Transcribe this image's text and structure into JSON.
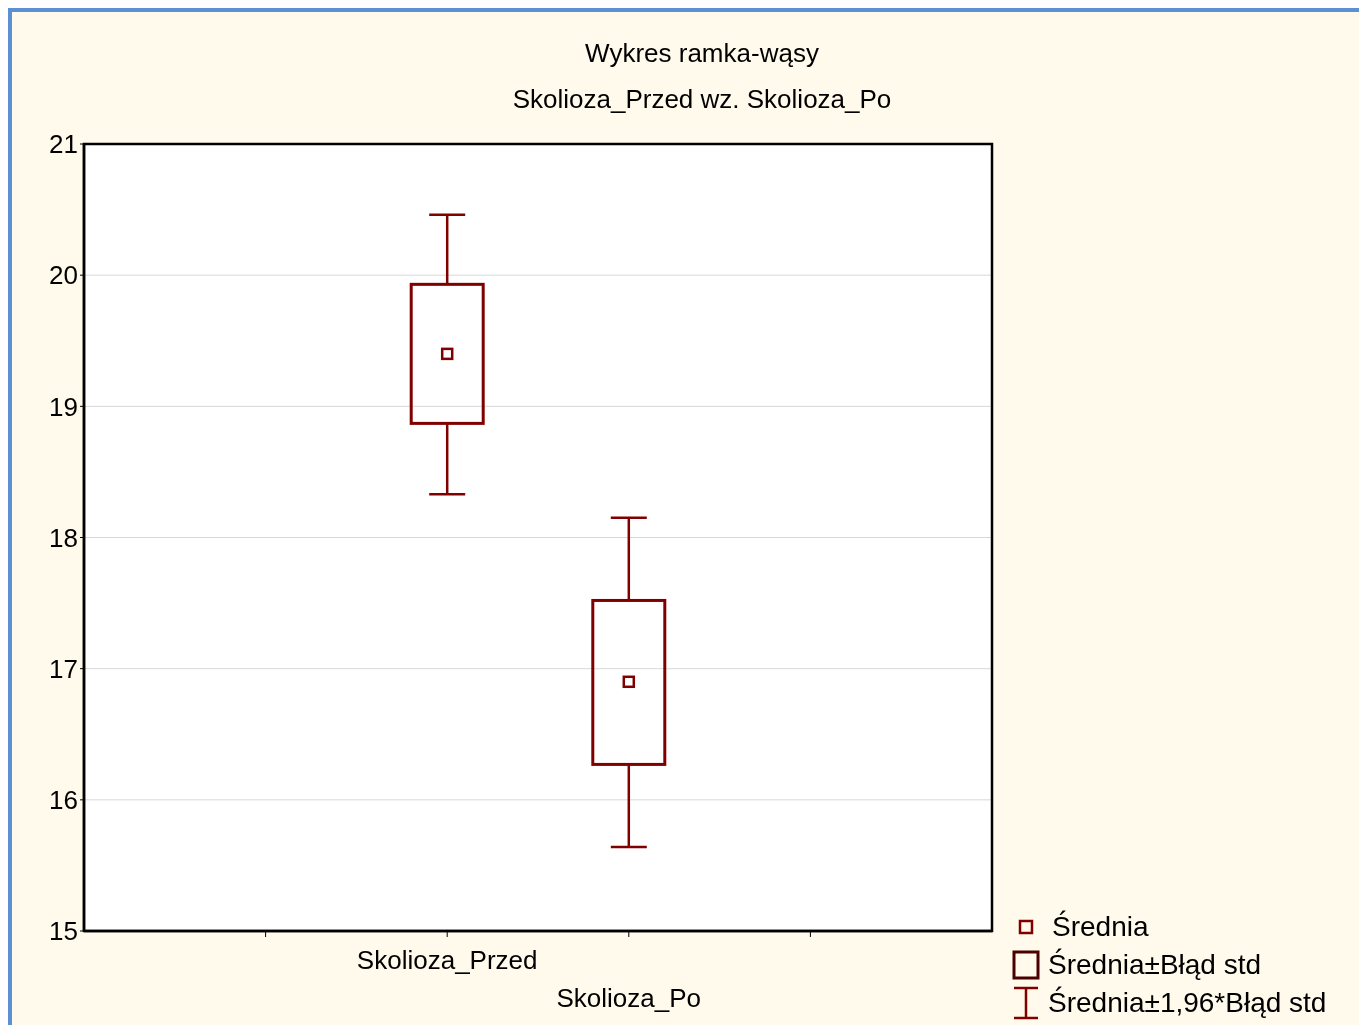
{
  "chart_data": {
    "type": "box",
    "title": "Wykres ramka-wąsy",
    "subtitle": "Skolioza_Przed wz. Skolioza_Po",
    "categories": [
      "Skolioza_Przed",
      "Skolioza_Po"
    ],
    "boxes": [
      {
        "low": 18.33,
        "q1": 18.87,
        "q3": 19.93,
        "high": 20.46,
        "mean": 19.4
      },
      {
        "low": 15.64,
        "q1": 16.27,
        "q3": 17.52,
        "high": 18.15,
        "mean": 16.9
      }
    ],
    "color": "#800000",
    "ylim": [
      15,
      21
    ],
    "yticks": [
      15,
      16,
      17,
      18,
      19,
      20,
      21
    ],
    "grid": "y",
    "marker": "square",
    "annotations": [
      "Średnia",
      "Średnia±Błąd std",
      "Średnia±1,96*Błąd std"
    ]
  }
}
